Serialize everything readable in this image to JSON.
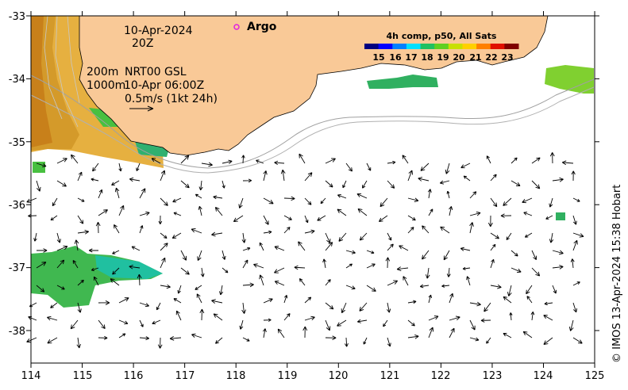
{
  "map": {
    "date": "10-Apr-2024",
    "hour": "20Z",
    "legend_argo": "Argo",
    "isobath_label_1": "200m",
    "isobath_label_2": "1000m",
    "current_source": "NRT00 GSL",
    "current_time": "10-Apr 06:00Z",
    "scale_label": "0.5m/s (1kt 24h)",
    "sst_title": "4h comp, p50, All Sats",
    "sst_ticks": [
      "15",
      "16",
      "17",
      "18",
      "19",
      "20",
      "21",
      "22",
      "23"
    ],
    "colorbar_colors": [
      "#00007f",
      "#0000ff",
      "#0080ff",
      "#00e0ff",
      "#20c060",
      "#60d020",
      "#c8e000",
      "#ffd000",
      "#ff8000",
      "#e01000",
      "#800000"
    ],
    "land_color": "#f9c997",
    "credit": "© IMOS 13-Apr-2024 15:38 Hobart",
    "x_ticks": [
      "114",
      "115",
      "116",
      "117",
      "118",
      "119",
      "120",
      "121",
      "122",
      "123",
      "124",
      "125"
    ],
    "y_ticks": [
      "-33",
      "-34",
      "-35",
      "-36",
      "-37",
      "-38"
    ]
  }
}
